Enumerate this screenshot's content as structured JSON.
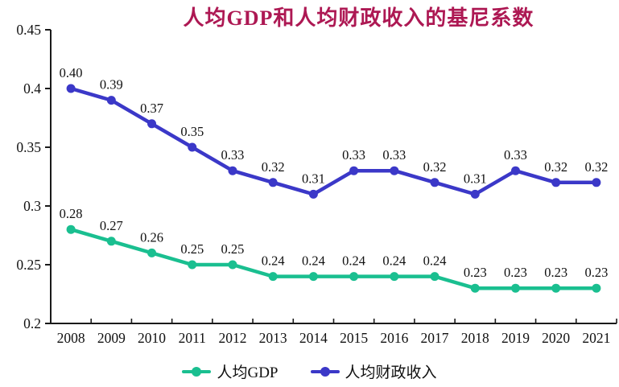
{
  "chart_data": {
    "type": "line",
    "title": "人均GDP和人均财政收入的基尼系数",
    "title_color": "#ad1853",
    "categories": [
      "2008",
      "2009",
      "2010",
      "2011",
      "2012",
      "2013",
      "2014",
      "2015",
      "2016",
      "2017",
      "2018",
      "2019",
      "2020",
      "2021"
    ],
    "series": [
      {
        "name": "人均GDP",
        "color": "#1abf90",
        "values": [
          0.28,
          0.27,
          0.26,
          0.25,
          0.25,
          0.24,
          0.24,
          0.24,
          0.24,
          0.24,
          0.23,
          0.23,
          0.23,
          0.23
        ]
      },
      {
        "name": "人均财政收入",
        "color": "#3b38c8",
        "values": [
          0.4,
          0.39,
          0.37,
          0.35,
          0.33,
          0.32,
          0.31,
          0.33,
          0.33,
          0.32,
          0.31,
          0.33,
          0.32,
          0.32
        ]
      }
    ],
    "xlabel": "",
    "ylabel": "",
    "ylim": [
      0.2,
      0.45
    ],
    "yticks": [
      0.2,
      0.25,
      0.3,
      0.35,
      0.4,
      0.45
    ],
    "ytick_labels": [
      "0.2",
      "0.25",
      "0.3",
      "0.35",
      "0.4",
      "0.45"
    ],
    "data_label_decimals": 2,
    "grid": false,
    "legend_position": "bottom",
    "axis_color": "#1a1a1a",
    "label_color": "#111111",
    "background_color": "#ffffff"
  }
}
